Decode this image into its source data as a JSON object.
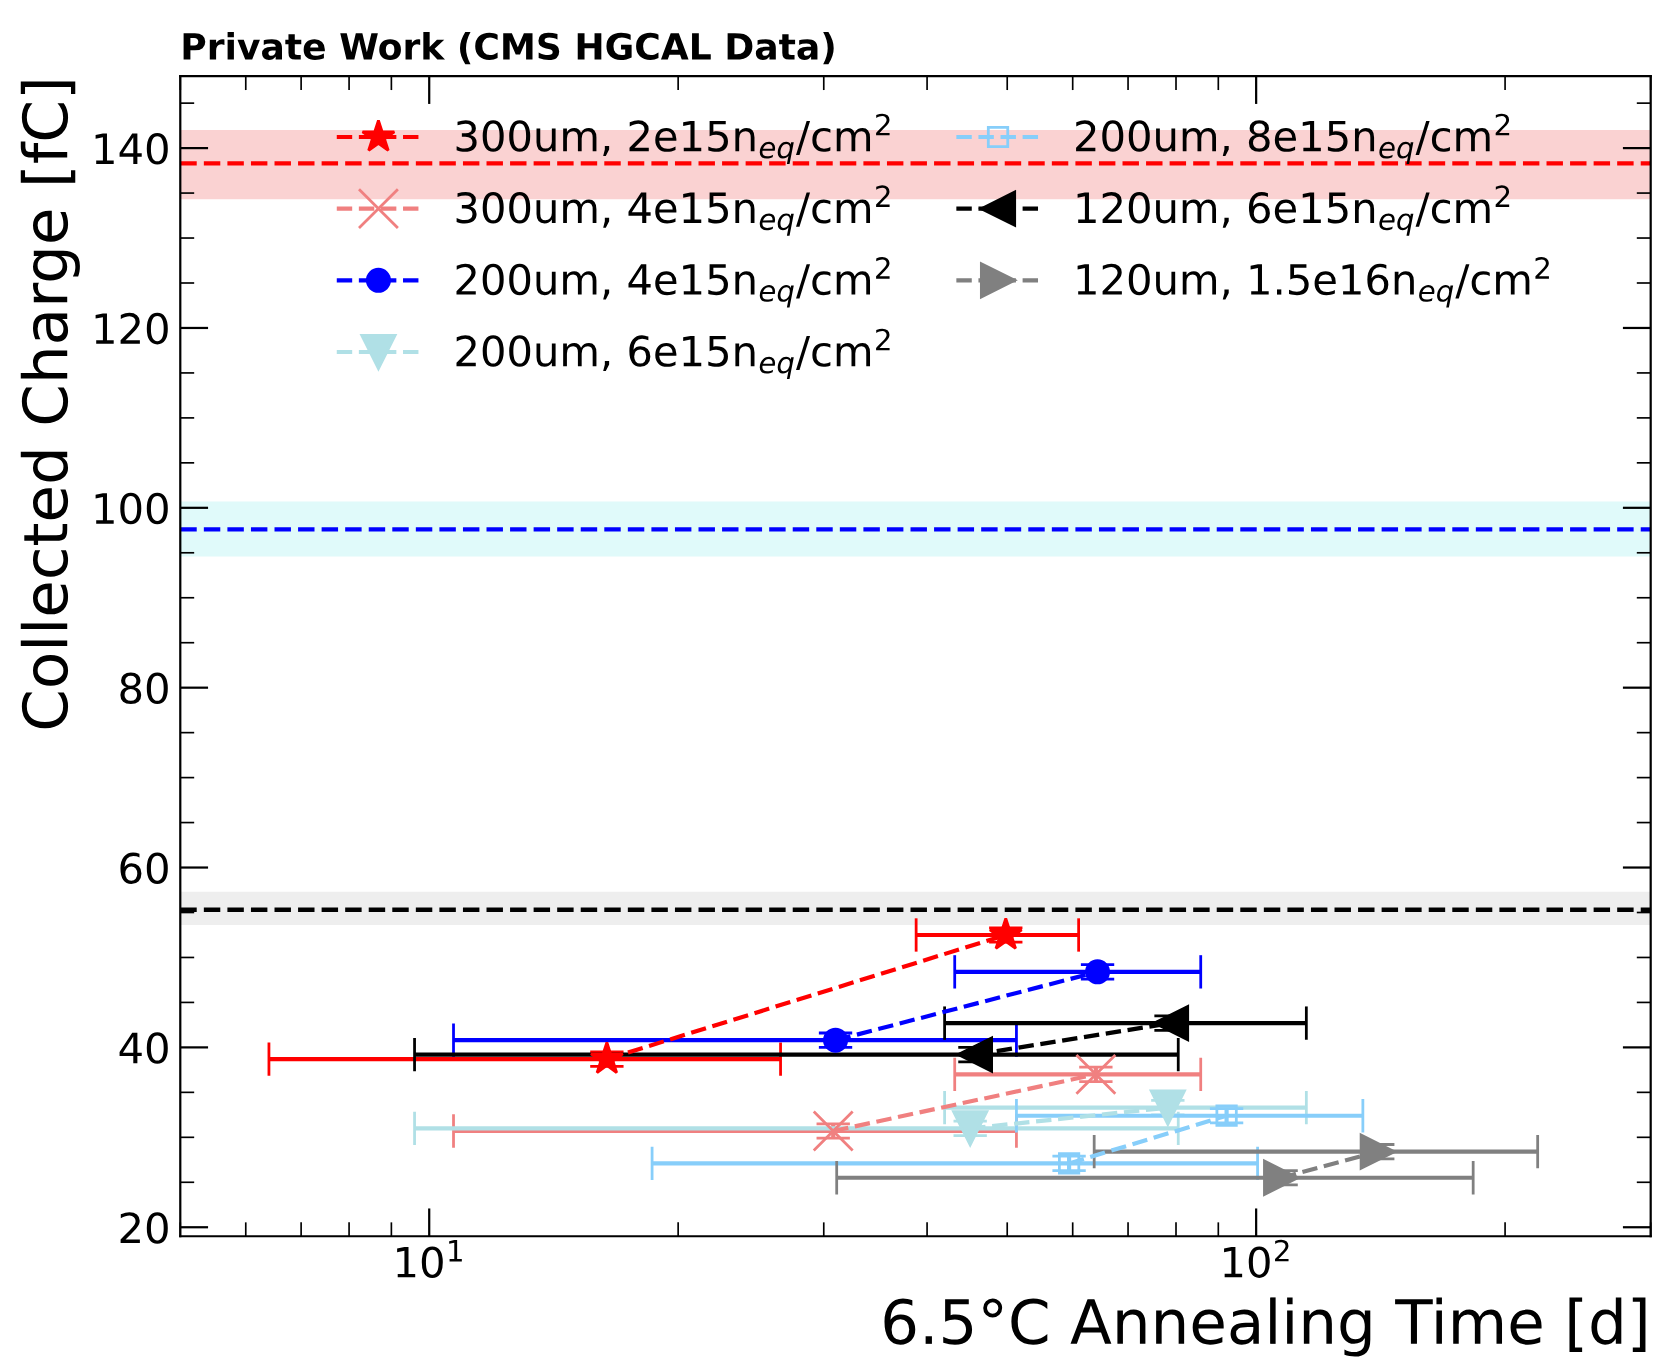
{
  "chart_data": {
    "type": "line",
    "title": "Private Work (CMS HGCAL Data)",
    "xlabel": "6.5°C Annealing Time [d]",
    "ylabel": "Collected Charge [fC]",
    "log": "x",
    "xlim": [
      5,
      300
    ],
    "xticks": [
      {
        "value": 10,
        "label": "10$^{1}$"
      },
      {
        "value": 100,
        "label": "10$^{2}$"
      }
    ],
    "ylim": [
      19,
      148
    ],
    "yticks": [
      20,
      40,
      60,
      80,
      100,
      120,
      140
    ],
    "grid": false,
    "legend": "top",
    "line_style": "dashed",
    "series": [
      {
        "name": "300um, 2e15n$_{eq}$/cm$^{2}$",
        "color": "#ff0000",
        "marker": "star",
        "x": [
          16.4,
          49.8
        ],
        "values": [
          38.7,
          52.5
        ],
        "errors": [
          0.8,
          0.8
        ],
        "xerrors": [
          [
            6.4,
            26.6
          ],
          [
            38.8,
            61.0
          ]
        ]
      },
      {
        "name": "300um, 4e15n$_{eq}$/cm$^{2}$",
        "color": "#f08080",
        "marker": "cross",
        "x": [
          30.8,
          64.0
        ],
        "values": [
          30.7,
          37.0
        ],
        "errors": [
          0.8,
          0.8
        ],
        "xerrors": [
          [
            10.7,
            51.3
          ],
          [
            43.2,
            85.7
          ]
        ]
      },
      {
        "name": "200um, 4e15n$_{eq}$/cm$^{2}$",
        "color": "#0000ff",
        "marker": "circle",
        "x": [
          31.0,
          64.3
        ],
        "values": [
          40.8,
          48.4
        ],
        "errors": [
          0.8,
          0.8
        ],
        "xerrors": [
          [
            10.7,
            51.3
          ],
          [
            43.2,
            85.7
          ]
        ]
      },
      {
        "name": "200um, 6e15n$_{eq}$/cm$^{2}$",
        "color": "#b0e0e6",
        "marker": "triangle_down",
        "x": [
          45.1,
          78.2
        ],
        "values": [
          31.0,
          33.3
        ],
        "errors": [
          0.8,
          0.8
        ],
        "xerrors": [
          [
            9.6,
            80.5
          ],
          [
            42.0,
            115
          ]
        ]
      },
      {
        "name": "200um, 8e15n$_{eq}$/cm$^{2}$",
        "color": "#87cefa",
        "marker": "square",
        "x": [
          59.4,
          92.1
        ],
        "values": [
          27.1,
          32.4
        ],
        "errors": [
          0.8,
          0.8
        ],
        "xerrors": [
          [
            18.6,
            100.4
          ],
          [
            51.3,
            134.6
          ]
        ]
      },
      {
        "name": "120um, 6e15n$_{eq}$/cm$^{2}$",
        "color": "#000000",
        "marker": "triangle_left",
        "x": [
          45.7,
          78.9
        ],
        "values": [
          39.2,
          42.7
        ],
        "errors": [
          0.8,
          0.8
        ],
        "xerrors": [
          [
            9.6,
            80.5
          ],
          [
            42.0,
            115
          ]
        ]
      },
      {
        "name": "120um, 1.5e16n$_{eq}$/cm$^{2}$",
        "color": "#808080",
        "marker": "triangle_right",
        "x": [
          107.2,
          140.3
        ],
        "values": [
          25.5,
          28.4
        ],
        "errors": [
          0.8,
          0.8
        ],
        "xerrors": [
          [
            31.1,
            183
          ],
          [
            63.7,
            219
          ]
        ]
      }
    ],
    "ref_lines": [
      {
        "axis": "y",
        "value": 138.3,
        "color": "#ff0000",
        "line_style": "dashed"
      },
      {
        "axis": "y",
        "value": 97.6,
        "color": "#0000ff",
        "line_style": "dashed"
      },
      {
        "axis": "y",
        "value": 55.3,
        "color": "#000000",
        "line_style": "dashed"
      }
    ],
    "bands": [
      {
        "axis": "y",
        "from": 134.3,
        "to": 142.0,
        "color": "#fad2d2"
      },
      {
        "axis": "y",
        "from": 94.6,
        "to": 100.7,
        "color": "#e0fafa"
      },
      {
        "axis": "y",
        "from": 53.6,
        "to": 57.3,
        "color": "#eeeeee"
      }
    ]
  }
}
